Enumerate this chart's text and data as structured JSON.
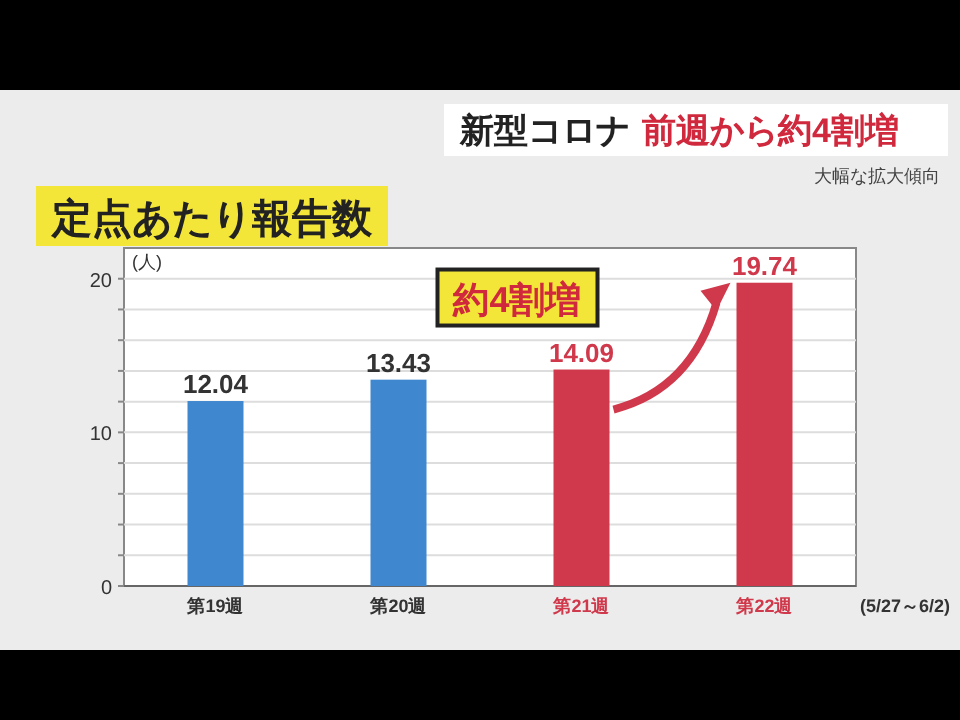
{
  "chart_data": {
    "type": "bar",
    "title": "新型コロナ 前週から約4割増",
    "subtitle": "大幅な拡大傾向",
    "ylabel": "(人)",
    "categories": [
      "第19週",
      "第20週",
      "第21週",
      "第22週"
    ],
    "values": [
      12.04,
      13.43,
      14.09,
      19.74
    ],
    "colors": [
      "#3f87cf",
      "#3f87cf",
      "#d0394b",
      "#d0394b"
    ],
    "ylim": [
      0,
      22
    ],
    "yticks": [
      0,
      {
        "value": 2,
        "label": null
      },
      {
        "value": 4,
        "label": null
      },
      {
        "value": 6,
        "label": null
      },
      {
        "value": 8,
        "label": null
      },
      10,
      {
        "value": 12,
        "label": null
      },
      {
        "value": 14,
        "label": null
      },
      {
        "value": 16,
        "label": null
      },
      {
        "value": 18,
        "label": null
      },
      20
    ],
    "grid": "y",
    "data_labels": true,
    "annotations": [
      "定点あたり報告数",
      "約4割増",
      "(5/27～6/2)"
    ]
  }
}
